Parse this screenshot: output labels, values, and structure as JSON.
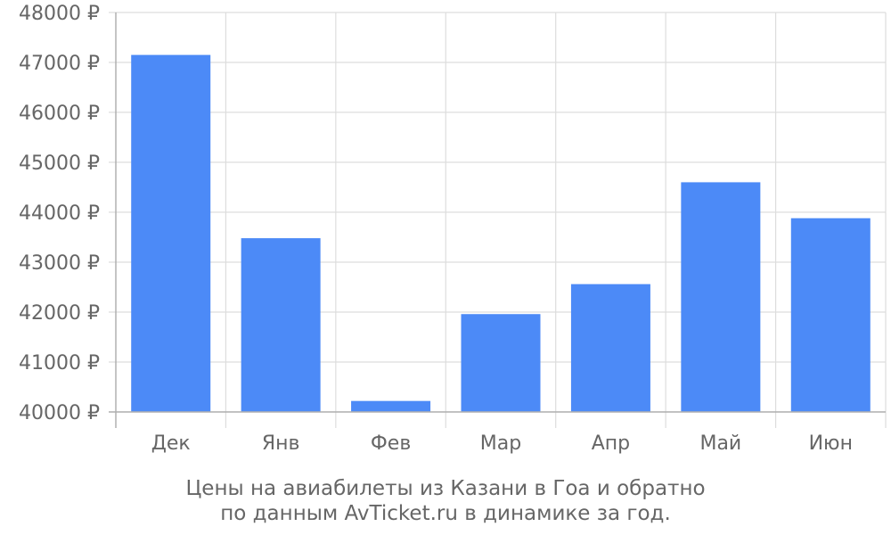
{
  "chart_data": {
    "type": "bar",
    "categories": [
      "Дек",
      "Янв",
      "Фев",
      "Мар",
      "Апр",
      "Май",
      "Июн"
    ],
    "values": [
      47150,
      43480,
      40220,
      41960,
      42560,
      44600,
      43880
    ],
    "ylim": [
      40000,
      48000
    ],
    "yticks": [
      40000,
      41000,
      42000,
      43000,
      44000,
      45000,
      46000,
      47000,
      48000
    ],
    "ytick_labels": [
      "40000 ₽",
      "41000 ₽",
      "42000 ₽",
      "43000 ₽",
      "44000 ₽",
      "45000 ₽",
      "46000 ₽",
      "47000 ₽",
      "48000 ₽"
    ],
    "grid": true,
    "legend": "none",
    "caption": [
      "Цены на авиабилеты из Казани в Гоа и обратно",
      "по данным AvTicket.ru в динамике за год."
    ],
    "colors": {
      "bar": "#4c8af7",
      "grid": "#dddddd",
      "axis": "#b0b0b0",
      "text": "#666666"
    }
  }
}
